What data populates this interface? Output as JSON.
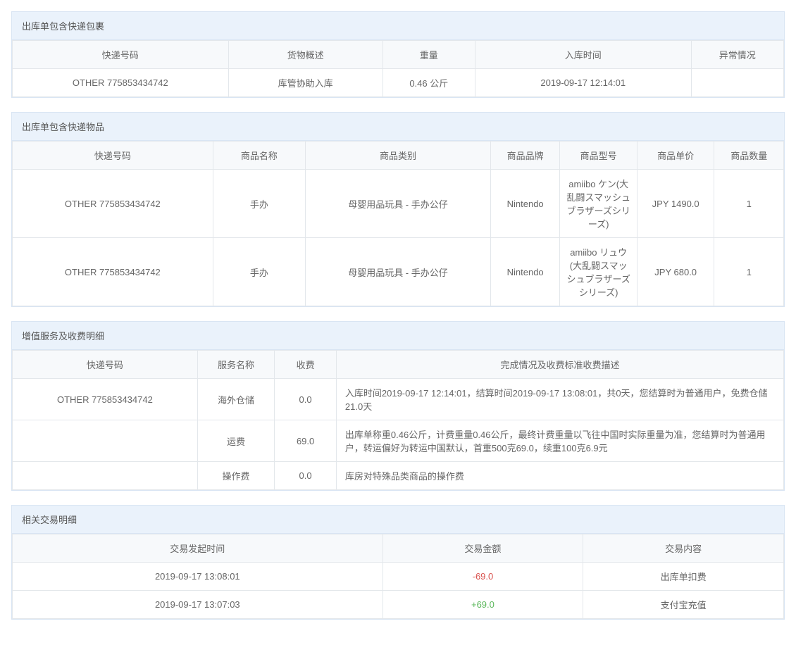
{
  "panel1": {
    "title": "出库单包含快递包裹",
    "columns": [
      "快递号码",
      "货物概述",
      "重量",
      "入库时间",
      "异常情况"
    ],
    "colWidths": [
      "28%",
      "20%",
      "12%",
      "28%",
      "12%"
    ],
    "rows": [
      [
        "OTHER 775853434742",
        "库管协助入库",
        "0.46 公斤",
        "2019-09-17 12:14:01",
        ""
      ]
    ]
  },
  "panel2": {
    "title": "出库单包含快递物品",
    "columns": [
      "快递号码",
      "商品名称",
      "商品类别",
      "商品品牌",
      "商品型号",
      "商品单价",
      "商品数量"
    ],
    "colWidths": [
      "26%",
      "12%",
      "24%",
      "9%",
      "10%",
      "10%",
      "9%"
    ],
    "rows": [
      [
        "OTHER 775853434742",
        "手办",
        "母婴用品玩具 - 手办公仔",
        "Nintendo",
        "amiibo ケン(大乱闘スマッシュブラザーズシリーズ)",
        "JPY 1490.0",
        "1"
      ],
      [
        "OTHER 775853434742",
        "手办",
        "母婴用品玩具 - 手办公仔",
        "Nintendo",
        "amiibo リュウ(大乱闘スマッシュブラザーズシリーズ)",
        "JPY 680.0",
        "1"
      ]
    ]
  },
  "panel3": {
    "title": "增值服务及收费明细",
    "columns": [
      "快递号码",
      "服务名称",
      "收费",
      "完成情况及收费标准收费描述"
    ],
    "colWidths": [
      "24%",
      "10%",
      "8%",
      "58%"
    ],
    "rows": [
      {
        "cells": [
          "OTHER 775853434742",
          "海外仓储",
          "0.0",
          "入库时间2019-09-17 12:14:01，结算时间2019-09-17 13:08:01，共0天，您结算时为普通用户，免费仓储21.0天"
        ]
      },
      {
        "cells": [
          "",
          "运费",
          "69.0",
          "出库单称重0.46公斤，计费重量0.46公斤，最终计费重量以飞往中国时实际重量为准，您结算时为普通用户，转运偏好为转运中国默认，首重500克69.0，续重100克6.9元"
        ]
      },
      {
        "cells": [
          "",
          "操作费",
          "0.0",
          "库房对特殊品类商品的操作费"
        ]
      }
    ]
  },
  "panel4": {
    "title": "相关交易明细",
    "columns": [
      "交易发起时间",
      "交易金额",
      "交易内容"
    ],
    "colWidths": [
      "48%",
      "26%",
      "26%"
    ],
    "rows": [
      {
        "time": "2019-09-17 13:08:01",
        "amount": "-69.0",
        "amountClass": "neg",
        "content": "出库单扣费"
      },
      {
        "time": "2019-09-17 13:07:03",
        "amount": "+69.0",
        "amountClass": "pos",
        "content": "支付宝充值"
      }
    ]
  }
}
